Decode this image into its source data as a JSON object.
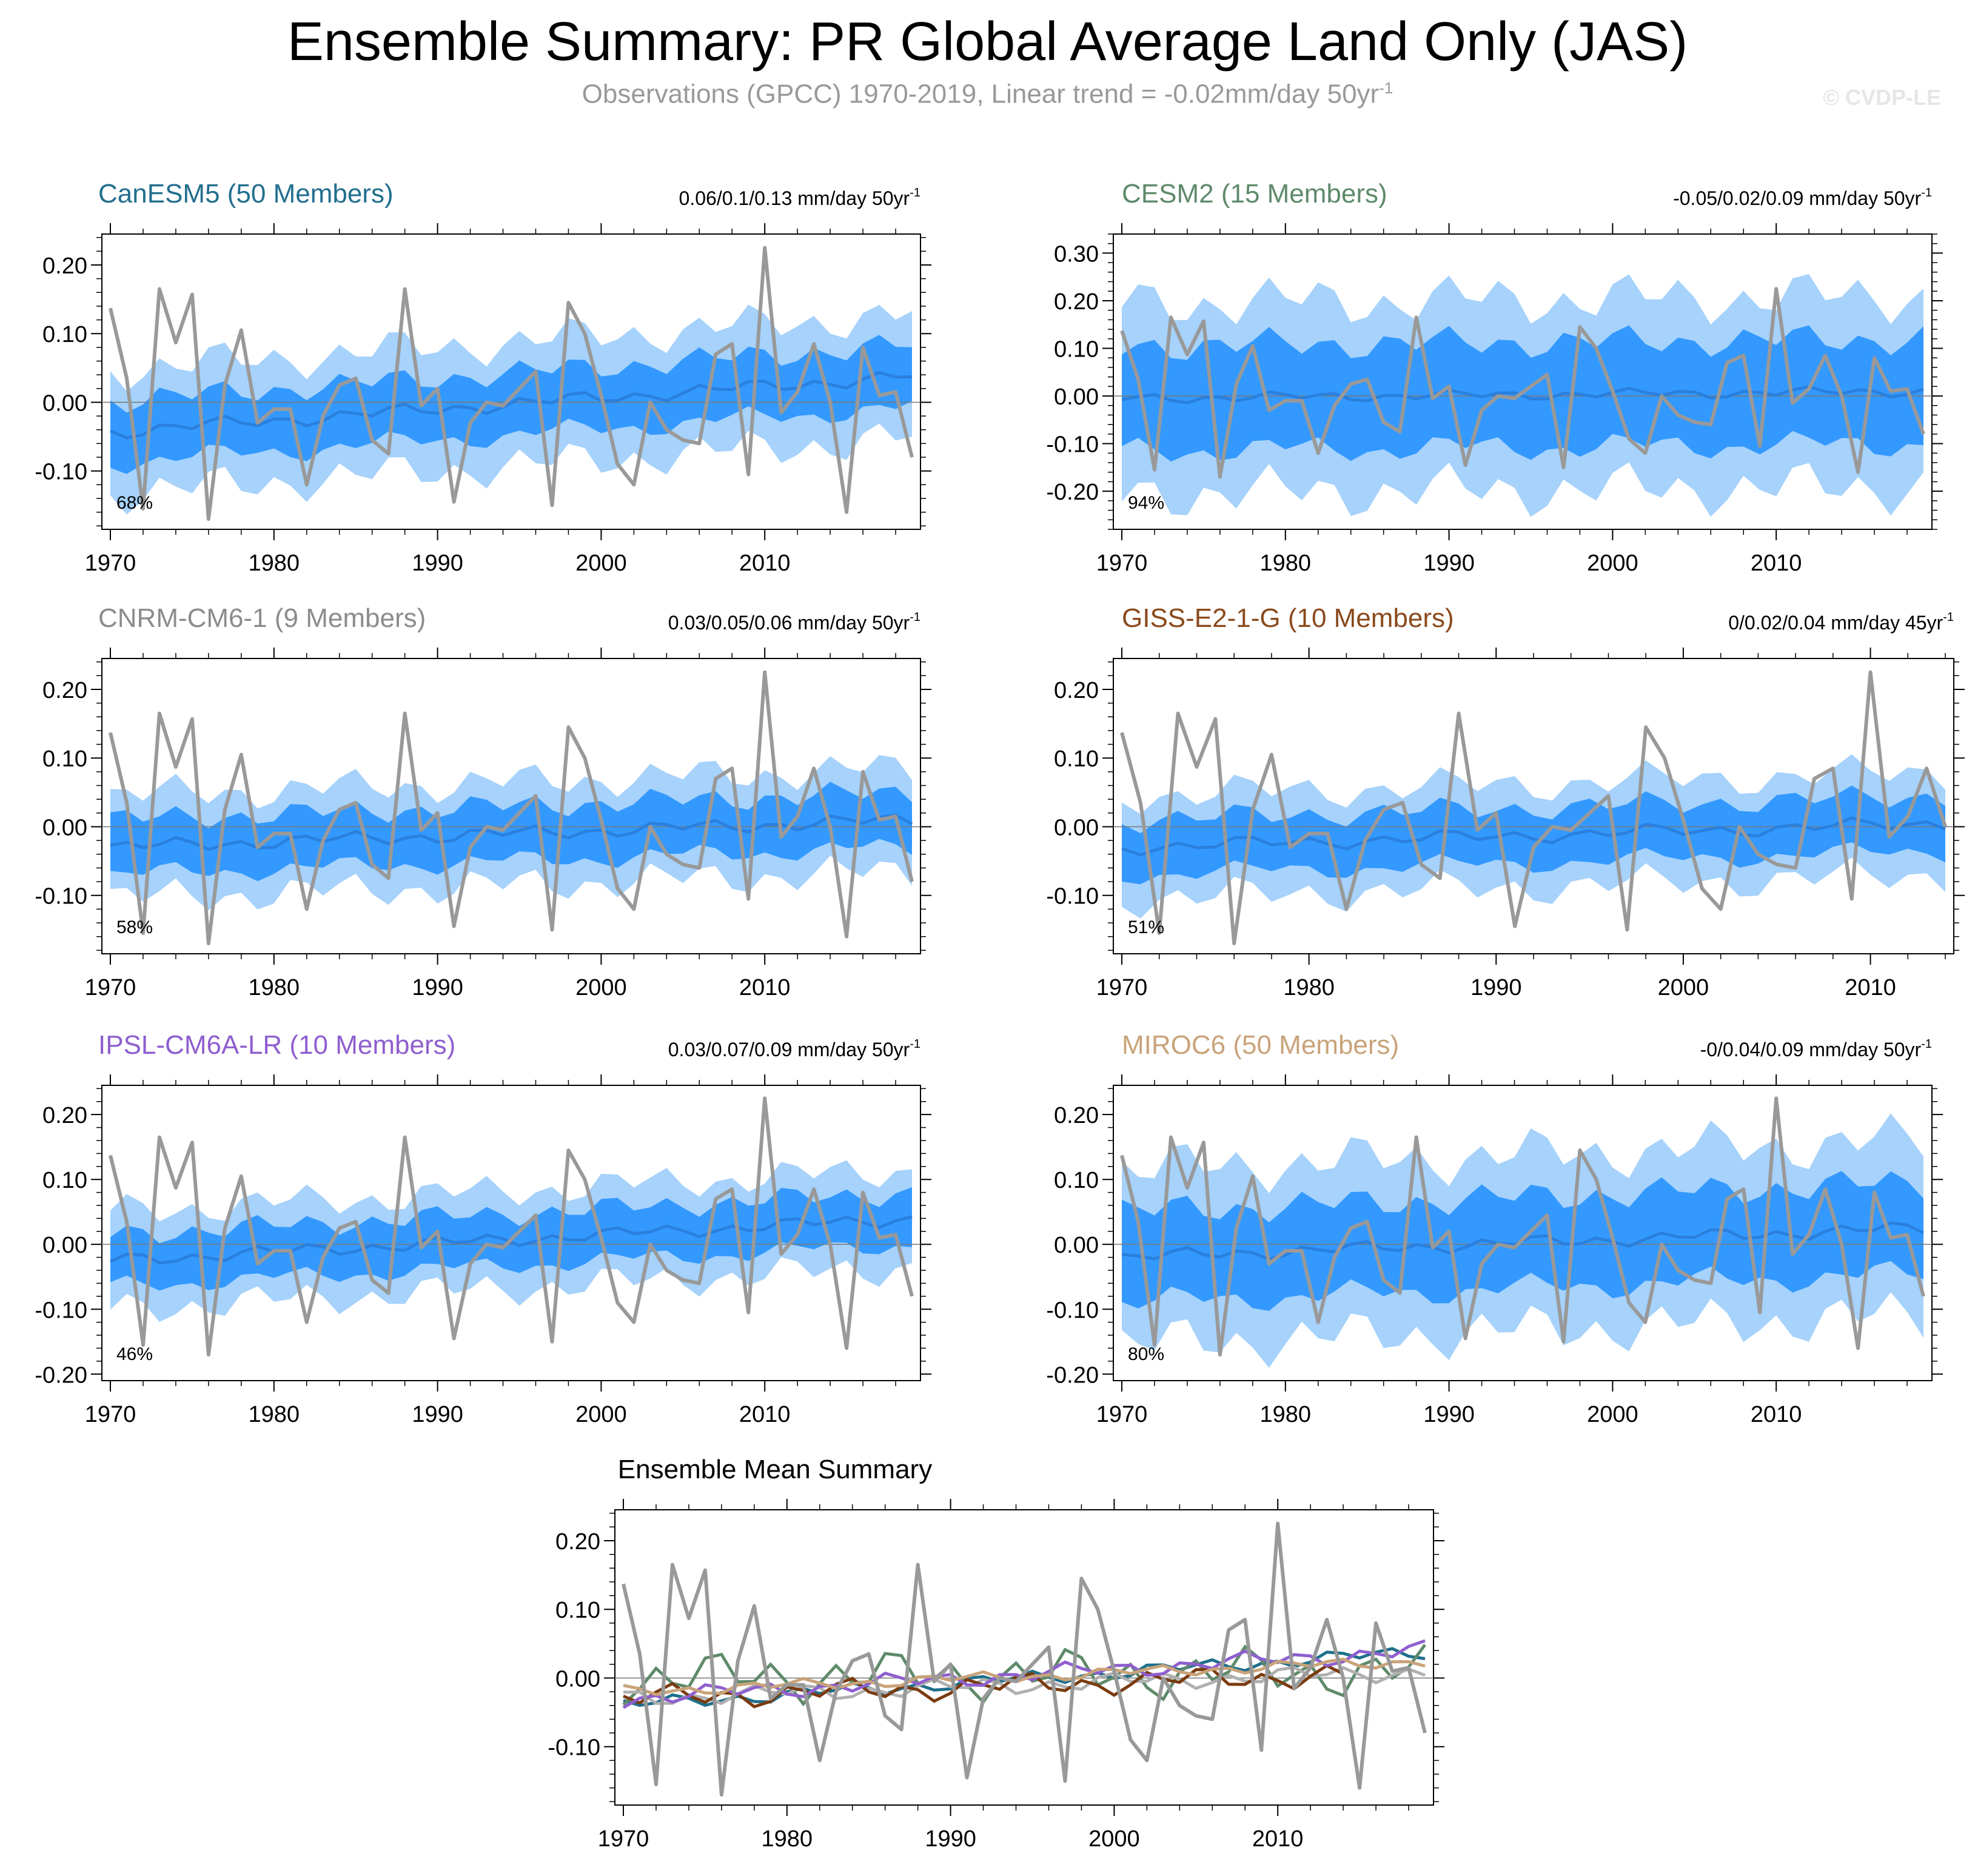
{
  "header": {
    "title": "Ensemble Summary: PR Global Average Land Only (JAS)",
    "subtitle": "Observations (GPCC) 1970-2019, Linear trend = -0.02mm/day 50yr",
    "subtitle_sup": "-1",
    "watermark": "© CVDP-LE"
  },
  "colors": {
    "band_outer": "#a6d2fb",
    "band_inner": "#3399ff",
    "mean_line": "#2a80dd",
    "obs_line": "#999999"
  },
  "chart_data": [
    {
      "type": "area",
      "title": "CanESM5 (50 Members)",
      "title_color": "#226f8e",
      "trend_label": "0.06/0.1/0.13 mm/day 50yr",
      "trend_sup": "-1",
      "percent_label": "68%",
      "x_range": [
        1970,
        2019
      ],
      "ylim": [
        -0.185,
        0.245
      ],
      "yticks": [
        -0.1,
        0.0,
        0.1,
        0.2
      ],
      "ytick_labels": [
        "-0.10",
        "0.00",
        "0.10",
        "0.20"
      ],
      "xticks": [
        1970,
        1980,
        1990,
        2000,
        2010
      ],
      "mean_start": -0.043,
      "mean_end": 0.038,
      "inner_half": 0.045,
      "outer_half": 0.09
    },
    {
      "type": "area",
      "title": "CESM2 (15 Members)",
      "title_color": "#5e8a6a",
      "trend_label": "-0.05/0.02/0.09 mm/day 50yr",
      "trend_sup": "-1",
      "percent_label": "94%",
      "x_range": [
        1970,
        2019
      ],
      "ylim": [
        -0.28,
        0.34
      ],
      "yticks": [
        -0.2,
        -0.1,
        0.0,
        0.1,
        0.2,
        0.3
      ],
      "ytick_labels": [
        "-0.20",
        "-0.10",
        "0.00",
        "0.10",
        "0.20",
        "0.30"
      ],
      "xticks": [
        1970,
        1980,
        1990,
        2000,
        2010
      ],
      "mean_start": -0.005,
      "mean_end": 0.01,
      "inner_half": 0.11,
      "outer_half": 0.2
    },
    {
      "type": "area",
      "title": "CNRM-CM6-1 (9 Members)",
      "title_color": "#8c8c8c",
      "trend_label": "0.03/0.05/0.06 mm/day 50yr",
      "trend_sup": "-1",
      "percent_label": "58%",
      "x_range": [
        1970,
        2019
      ],
      "ylim": [
        -0.185,
        0.245
      ],
      "yticks": [
        -0.1,
        0.0,
        0.1,
        0.2
      ],
      "ytick_labels": [
        "-0.10",
        "0.00",
        "0.10",
        "0.20"
      ],
      "xticks": [
        1970,
        1980,
        1990,
        2000,
        2010
      ],
      "mean_start": -0.03,
      "mean_end": 0.01,
      "inner_half": 0.04,
      "outer_half": 0.075
    },
    {
      "type": "area",
      "title": "GISS-E2-1-G (10 Members)",
      "title_color": "#8a4a1c",
      "trend_label": "0/0.02/0.04 mm/day 45yr",
      "trend_sup": "-1",
      "percent_label": "51%",
      "x_range": [
        1970,
        2014
      ],
      "ylim": [
        -0.185,
        0.245
      ],
      "yticks": [
        -0.1,
        0.0,
        0.1,
        0.2
      ],
      "ytick_labels": [
        "-0.10",
        "0.00",
        "0.10",
        "0.20"
      ],
      "xticks": [
        1970,
        1980,
        1990,
        2000,
        2010
      ],
      "mean_start": -0.03,
      "mean_end": 0.005,
      "inner_half": 0.04,
      "outer_half": 0.075
    },
    {
      "type": "area",
      "title": "IPSL-CM6A-LR (10 Members)",
      "title_color": "#8f5fcf",
      "trend_label": "0.03/0.07/0.09 mm/day 50yr",
      "trend_sup": "-1",
      "percent_label": "46%",
      "x_range": [
        1970,
        2019
      ],
      "ylim": [
        -0.21,
        0.245
      ],
      "yticks": [
        -0.2,
        -0.1,
        0.0,
        0.1,
        0.2
      ],
      "ytick_labels": [
        "-0.20",
        "-0.10",
        "0.00",
        "0.10",
        "0.20"
      ],
      "xticks": [
        1970,
        1980,
        1990,
        2000,
        2010
      ],
      "mean_start": -0.025,
      "mean_end": 0.04,
      "inner_half": 0.04,
      "outer_half": 0.075
    },
    {
      "type": "area",
      "title": "MIROC6 (50 Members)",
      "title_color": "#c9a37a",
      "trend_label": "-0/0.04/0.09 mm/day 50yr",
      "trend_sup": "-1",
      "percent_label": "80%",
      "x_range": [
        1970,
        2019
      ],
      "ylim": [
        -0.21,
        0.245
      ],
      "yticks": [
        -0.2,
        -0.1,
        0.0,
        0.1,
        0.2
      ],
      "ytick_labels": [
        "-0.20",
        "-0.10",
        "0.00",
        "0.10",
        "0.20"
      ],
      "xticks": [
        1970,
        1980,
        1990,
        2000,
        2010
      ],
      "mean_start": -0.02,
      "mean_end": 0.025,
      "inner_half": 0.07,
      "outer_half": 0.135
    },
    {
      "type": "line",
      "title": "Ensemble Mean Summary",
      "title_color": "#000000",
      "ylim": [
        -0.185,
        0.245
      ],
      "yticks": [
        -0.1,
        0.0,
        0.1,
        0.2
      ],
      "ytick_labels": [
        "-0.10",
        "0.00",
        "0.10",
        "0.20"
      ],
      "xticks": [
        1970,
        1980,
        1990,
        2000,
        2010
      ],
      "series": [
        {
          "model": "CanESM5",
          "color": "#1f6f8b",
          "start_year": 1970,
          "start": -0.04,
          "end": 0.038,
          "amp": 0.012
        },
        {
          "model": "CESM2",
          "color": "#5e8a6a",
          "start_year": 1970,
          "start": 0.0,
          "end": 0.01,
          "amp": 0.04
        },
        {
          "model": "CNRM-CM6-1",
          "color": "#b0b0b0",
          "start_year": 1970,
          "start": -0.03,
          "end": 0.01,
          "amp": 0.015
        },
        {
          "model": "GISS-E2-1-G",
          "color": "#7a3b10",
          "start_year": 1970,
          "start": -0.03,
          "end": 0.005,
          "amp": 0.02,
          "end_year": 2014
        },
        {
          "model": "IPSL-CM6A-LR",
          "color": "#8f5fcf",
          "start_year": 1970,
          "start": -0.03,
          "end": 0.04,
          "amp": 0.015
        },
        {
          "model": "MIROC6",
          "color": "#c9a37a",
          "start_year": 1970,
          "start": -0.02,
          "end": 0.025,
          "amp": 0.01
        }
      ]
    }
  ],
  "observations": {
    "name": "GPCC",
    "years": [
      1970,
      1971,
      1972,
      1973,
      1974,
      1975,
      1976,
      1977,
      1978,
      1979,
      1980,
      1981,
      1982,
      1983,
      1984,
      1985,
      1986,
      1987,
      1988,
      1989,
      1990,
      1991,
      1992,
      1993,
      1994,
      1995,
      1996,
      1997,
      1998,
      1999,
      2000,
      2001,
      2002,
      2003,
      2004,
      2005,
      2006,
      2007,
      2008,
      2009,
      2010,
      2011,
      2012,
      2013,
      2014,
      2015,
      2016,
      2017,
      2018,
      2019
    ],
    "values": [
      0.137,
      0.035,
      -0.155,
      0.165,
      0.087,
      0.157,
      -0.17,
      0.025,
      0.105,
      -0.03,
      -0.01,
      -0.01,
      -0.12,
      -0.02,
      0.025,
      0.035,
      -0.055,
      -0.075,
      0.165,
      -0.005,
      0.02,
      -0.145,
      -0.03,
      0.0,
      -0.005,
      0.02,
      0.045,
      -0.15,
      0.145,
      0.1,
      0.01,
      -0.09,
      -0.12,
      0.0,
      -0.04,
      -0.055,
      -0.06,
      0.07,
      0.085,
      -0.105,
      0.225,
      -0.015,
      0.015,
      0.085,
      0.0,
      -0.16,
      0.08,
      0.01,
      0.015,
      -0.08
    ]
  }
}
